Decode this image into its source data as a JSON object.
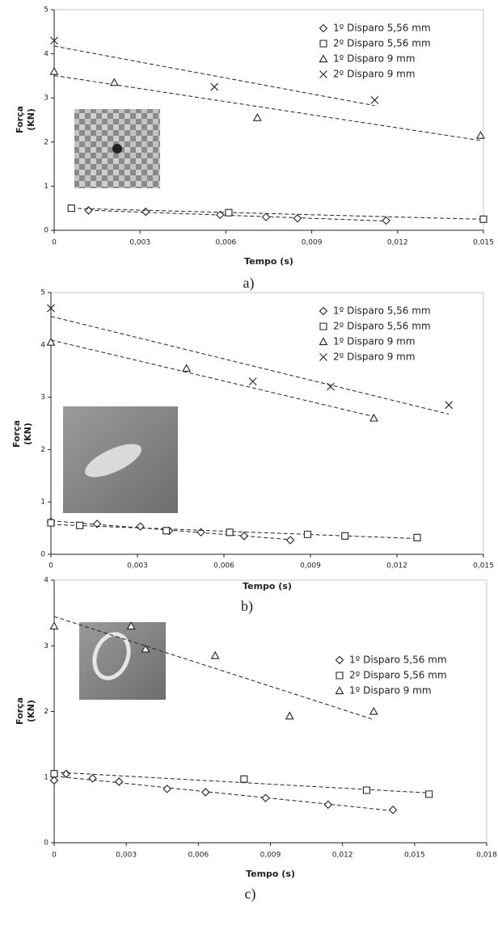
{
  "chart_data": [
    {
      "type": "scatter",
      "caption": "a)",
      "xlabel": "Tempo (s)",
      "ylabel": [
        "Força",
        "(KN)"
      ],
      "xlim": [
        0,
        0.015
      ],
      "ylim": [
        0,
        5
      ],
      "xticks": [
        0,
        {
          "value": 0.003,
          "label": "0,003"
        },
        {
          "value": 0.006,
          "label": "0,006"
        },
        {
          "value": 0.009,
          "label": "0,009"
        },
        {
          "value": 0.012,
          "label": "0,012"
        },
        {
          "value": 0.015,
          "label": "0,015"
        }
      ],
      "yticks": [
        0,
        1,
        2,
        3,
        4,
        5
      ],
      "legend": "upper right",
      "trendline": true,
      "series": [
        {
          "name": "1º Disparo 5,56 mm",
          "marker": "diamond",
          "color": "#222222",
          "x": [
            0.0012,
            0.0032,
            0.0058,
            0.0074,
            0.0085,
            0.0116
          ],
          "values": [
            0.45,
            0.42,
            0.35,
            0.3,
            0.27,
            0.22
          ]
        },
        {
          "name": "2º Disparo 5,56 mm",
          "marker": "square",
          "color": "#222222",
          "x": [
            0.0006,
            0.0061,
            0.015
          ],
          "values": [
            0.5,
            0.4,
            0.25
          ]
        },
        {
          "name": "1º Disparo 9 mm",
          "marker": "triangle",
          "color": "#222222",
          "x": [
            0,
            0.0021,
            0.0071,
            0.0149
          ],
          "values": [
            3.6,
            3.35,
            2.55,
            2.15
          ]
        },
        {
          "name": "2º Disparo 9 mm",
          "marker": "cross",
          "color": "#222222",
          "x": [
            0,
            0.0056,
            0.0112
          ],
          "values": [
            4.3,
            3.25,
            2.95
          ]
        }
      ]
    },
    {
      "type": "scatter",
      "caption": "b)",
      "xlabel": "Tempo (s)",
      "ylabel": [
        "Força",
        "(KN)"
      ],
      "xlim": [
        0,
        0.015
      ],
      "ylim": [
        0,
        5
      ],
      "xticks": [
        0,
        {
          "value": 0.003,
          "label": "0,003"
        },
        {
          "value": 0.006,
          "label": "0,006"
        },
        {
          "value": 0.009,
          "label": "0,009"
        },
        {
          "value": 0.012,
          "label": "0,012"
        },
        {
          "value": 0.015,
          "label": "0,015"
        }
      ],
      "yticks": [
        0,
        1,
        2,
        3,
        4,
        5
      ],
      "legend": "upper right",
      "trendline": true,
      "series": [
        {
          "name": "1º Disparo 5,56 mm",
          "marker": "diamond",
          "color": "#222222",
          "x": [
            0,
            0.0016,
            0.0031,
            0.0041,
            0.0052,
            0.0067,
            0.0083
          ],
          "values": [
            0.62,
            0.58,
            0.53,
            0.45,
            0.42,
            0.35,
            0.27
          ]
        },
        {
          "name": "2º Disparo 5,56 mm",
          "marker": "square",
          "color": "#222222",
          "x": [
            0,
            0.001,
            0.004,
            0.0062,
            0.0089,
            0.0102,
            0.0127
          ],
          "values": [
            0.6,
            0.55,
            0.45,
            0.42,
            0.38,
            0.35,
            0.32
          ]
        },
        {
          "name": "1º Disparo 9 mm",
          "marker": "triangle",
          "color": "#222222",
          "x": [
            0,
            0.0047,
            0.0112
          ],
          "values": [
            4.05,
            3.55,
            2.6
          ]
        },
        {
          "name": "2º Disparo 9 mm",
          "marker": "cross",
          "color": "#222222",
          "x": [
            0,
            0.007,
            0.0097,
            0.0138
          ],
          "values": [
            4.7,
            3.3,
            3.2,
            2.85
          ]
        }
      ]
    },
    {
      "type": "scatter",
      "caption": "c)",
      "xlabel": "Tempo (s)",
      "ylabel": [
        "Força",
        "(KN)"
      ],
      "xlim": [
        0,
        0.018
      ],
      "ylim": [
        0,
        4
      ],
      "xticks": [
        0,
        {
          "value": 0.003,
          "label": "0,003"
        },
        {
          "value": 0.006,
          "label": "0,006"
        },
        {
          "value": 0.009,
          "label": "0,009"
        },
        {
          "value": 0.012,
          "label": "0,012"
        },
        {
          "value": 0.015,
          "label": "0,015"
        },
        {
          "value": 0.018,
          "label": "0,018"
        }
      ],
      "yticks": [
        0,
        1,
        2,
        3,
        4
      ],
      "legend": "upper right",
      "trendline": true,
      "series": [
        {
          "name": "1º Disparo 5,56 mm",
          "marker": "diamond",
          "color": "#222222",
          "x": [
            0,
            0.0005,
            0.0016,
            0.0027,
            0.0047,
            0.0063,
            0.0088,
            0.0114,
            0.0141
          ],
          "values": [
            0.95,
            1.05,
            0.98,
            0.93,
            0.82,
            0.77,
            0.68,
            0.58,
            0.5
          ]
        },
        {
          "name": "2º Disparo 5,56 mm",
          "marker": "square",
          "color": "#222222",
          "x": [
            0,
            0.0079,
            0.013,
            0.0156
          ],
          "values": [
            1.05,
            0.97,
            0.8,
            0.74
          ]
        },
        {
          "name": "1º Disparo 9 mm",
          "marker": "triangle",
          "color": "#222222",
          "x": [
            0,
            0.0032,
            0.0038,
            0.0067,
            0.0098,
            0.0133
          ],
          "values": [
            3.3,
            3.3,
            2.95,
            2.85,
            1.93,
            2.0
          ]
        }
      ]
    }
  ]
}
